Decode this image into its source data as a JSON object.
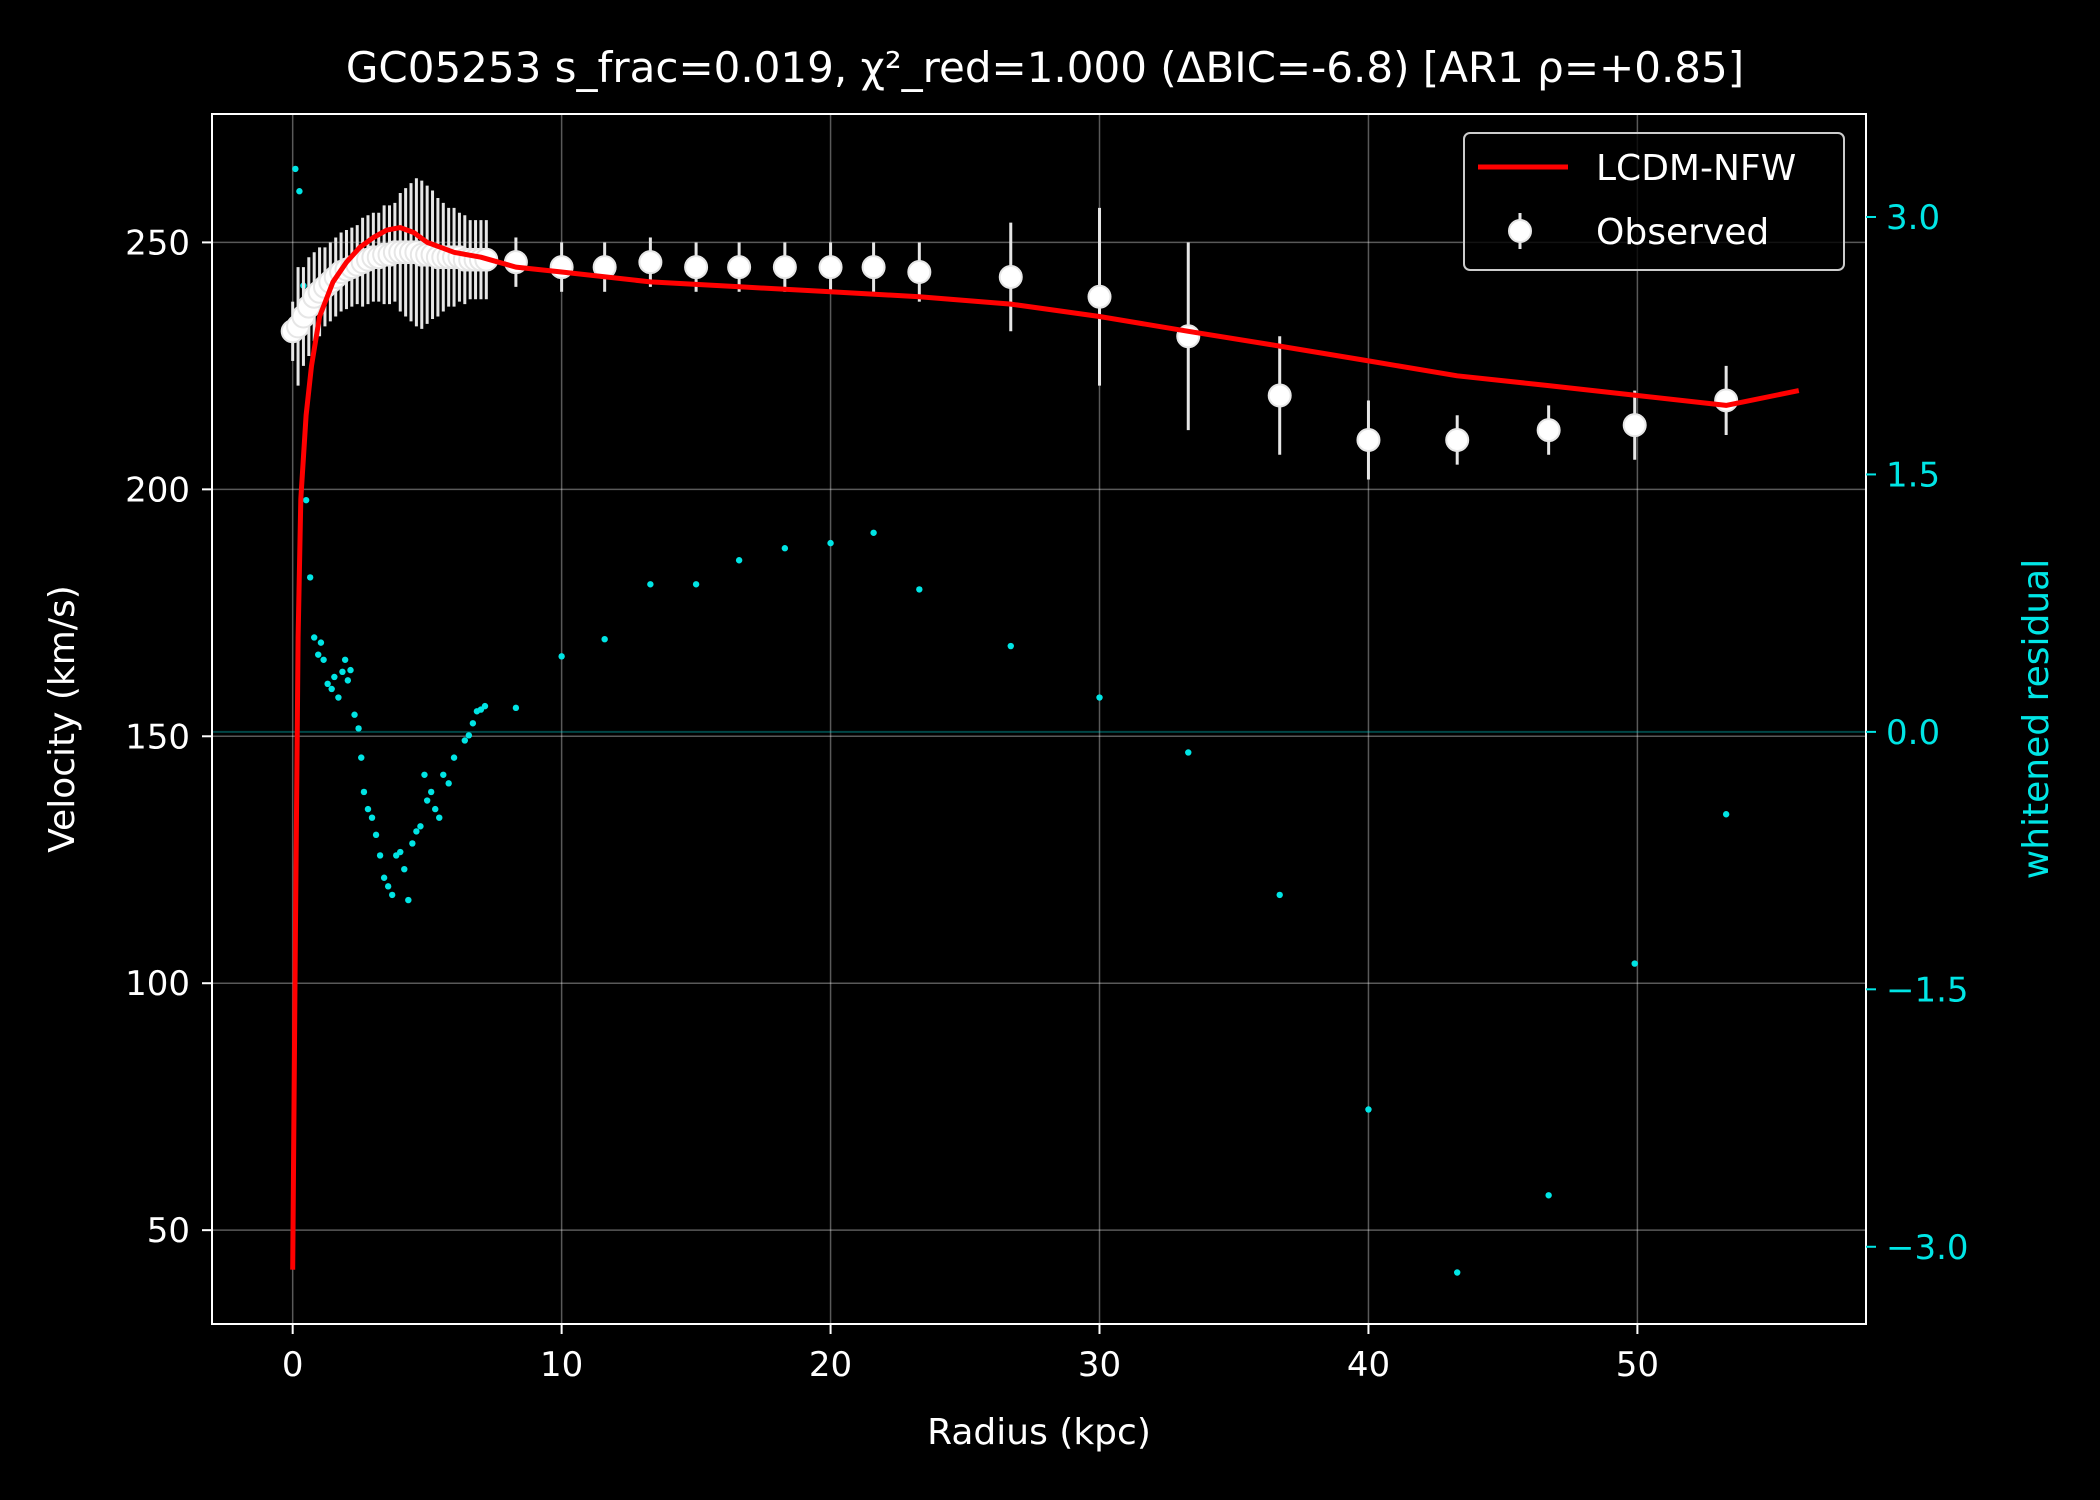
{
  "chart_data": {
    "type": "scatter",
    "title": "GC05253  s_frac=0.019, χ²_red=1.000  (ΔBIC=-6.8) [AR1 ρ=+0.85]",
    "xlabel": "Radius (kpc)",
    "ylabel": "Velocity (km/s)",
    "y2label": "whitened residual",
    "xlim": [
      -3.0,
      58.5
    ],
    "ylim": [
      31,
      276
    ],
    "y2lim": [
      -3.45,
      3.6
    ],
    "xticks": [
      0,
      10,
      20,
      30,
      40,
      50
    ],
    "yticks": [
      50,
      100,
      150,
      200,
      250
    ],
    "y2ticks": [
      3.0,
      1.5,
      0.0,
      -1.5,
      -3.0
    ],
    "y2ticklabels": [
      "3.0",
      "1.5",
      "0.0",
      "−1.5",
      "−3.0"
    ],
    "grid": true,
    "legend_position": "top-right",
    "colors": {
      "model": "#ff0000",
      "observed": "#e6e6e6",
      "residual": "#00e5e5",
      "background": "#000000",
      "axes": "#ffffff"
    },
    "series": [
      {
        "name": "LCDM-NFW",
        "kind": "line",
        "x": [
          0.0,
          0.1,
          0.2,
          0.3,
          0.5,
          0.7,
          1.0,
          1.5,
          2.0,
          2.5,
          3.0,
          3.5,
          4.0,
          4.5,
          5.0,
          5.5,
          6.0,
          6.5,
          7.0,
          8.3,
          10,
          13.3,
          16.7,
          20,
          23.3,
          26.7,
          30,
          33.3,
          36.7,
          40,
          43.3,
          46.7,
          50,
          53.3,
          56.0
        ],
        "y": [
          42,
          110,
          170,
          198,
          215,
          225,
          235,
          242,
          246,
          249,
          251,
          252.5,
          253,
          252,
          250,
          249,
          248,
          247.5,
          247,
          245,
          244,
          242,
          241,
          240,
          239,
          237.5,
          235,
          232,
          229,
          226,
          223,
          221,
          219,
          217,
          220
        ]
      },
      {
        "name": "Observed",
        "kind": "errorbar",
        "x": [
          0.0,
          0.2,
          0.4,
          0.6,
          0.8,
          1.0,
          1.2,
          1.4,
          1.6,
          1.8,
          2.0,
          2.2,
          2.4,
          2.6,
          2.8,
          3.0,
          3.2,
          3.4,
          3.6,
          3.8,
          4.0,
          4.2,
          4.4,
          4.6,
          4.8,
          5.0,
          5.2,
          5.4,
          5.6,
          5.8,
          6.0,
          6.2,
          6.4,
          6.6,
          6.8,
          7.0,
          7.2,
          8.3,
          10.0,
          11.6,
          13.3,
          15.0,
          16.6,
          18.3,
          20.0,
          21.6,
          23.3,
          26.7,
          30.0,
          33.3,
          36.7,
          40.0,
          43.3,
          46.7,
          49.9,
          53.3
        ],
        "y": [
          232,
          233,
          235,
          237,
          239,
          240,
          241,
          242,
          243,
          244,
          244.5,
          245,
          245.5,
          246,
          246.5,
          247,
          247,
          247.5,
          247.5,
          248,
          248,
          248,
          248,
          248,
          247.5,
          247.5,
          247.5,
          247,
          247,
          247,
          247,
          247,
          246.5,
          246.5,
          246.5,
          246.5,
          246.5,
          246,
          245,
          245,
          246,
          245,
          245,
          245,
          245,
          245,
          244,
          243,
          239,
          231,
          219,
          210,
          210,
          212,
          213,
          218
        ],
        "err": [
          6,
          12,
          10,
          10,
          9,
          9,
          8,
          8,
          8,
          8,
          8,
          8,
          8,
          9,
          9,
          9,
          9,
          10,
          10,
          10,
          12,
          13,
          14,
          15,
          15,
          14,
          13,
          12,
          11,
          10,
          10,
          9,
          9,
          8,
          8,
          8,
          8,
          5,
          5,
          5,
          5,
          5,
          5,
          5,
          5,
          5,
          6,
          11,
          18,
          19,
          12,
          8,
          5,
          5,
          7,
          7
        ]
      },
      {
        "name": "",
        "kind": "scatter",
        "axis": "right",
        "x": [
          0.1,
          0.25,
          0.4,
          0.5,
          0.65,
          0.8,
          0.95,
          1.05,
          1.15,
          1.3,
          1.45,
          1.55,
          1.7,
          1.85,
          1.95,
          2.05,
          2.15,
          2.3,
          2.45,
          2.55,
          2.65,
          2.8,
          2.95,
          3.1,
          3.25,
          3.4,
          3.55,
          3.7,
          3.85,
          4.0,
          4.15,
          4.3,
          4.45,
          4.6,
          4.75,
          4.9,
          5.0,
          5.15,
          5.3,
          5.45,
          5.6,
          5.8,
          6.0,
          6.4,
          6.55,
          6.7,
          6.85,
          7.0,
          7.15,
          8.3,
          10.0,
          11.6,
          13.3,
          15.0,
          16.6,
          18.3,
          20.0,
          21.6,
          23.3,
          26.7,
          30.0,
          33.3,
          36.7,
          40.0,
          43.3,
          46.7,
          49.9,
          53.3
        ],
        "y": [
          3.28,
          3.15,
          2.6,
          1.35,
          0.9,
          0.55,
          0.45,
          0.52,
          0.42,
          0.28,
          0.25,
          0.32,
          0.2,
          0.35,
          0.42,
          0.3,
          0.36,
          0.1,
          0.02,
          -0.15,
          -0.35,
          -0.45,
          -0.5,
          -0.6,
          -0.72,
          -0.85,
          -0.9,
          -0.95,
          -0.72,
          -0.7,
          -0.8,
          -0.98,
          -0.65,
          -0.58,
          -0.55,
          -0.25,
          -0.4,
          -0.35,
          -0.45,
          -0.5,
          -0.25,
          -0.3,
          -0.15,
          -0.05,
          -0.02,
          0.05,
          0.12,
          0.13,
          0.15,
          0.14,
          0.44,
          0.54,
          0.86,
          0.86,
          1.0,
          1.07,
          1.1,
          1.16,
          0.83,
          0.5,
          0.2,
          -0.12,
          -0.95,
          -2.2,
          -3.15,
          -2.7,
          -1.35,
          -0.48
        ]
      }
    ],
    "residual_zero_line": 0.0
  }
}
